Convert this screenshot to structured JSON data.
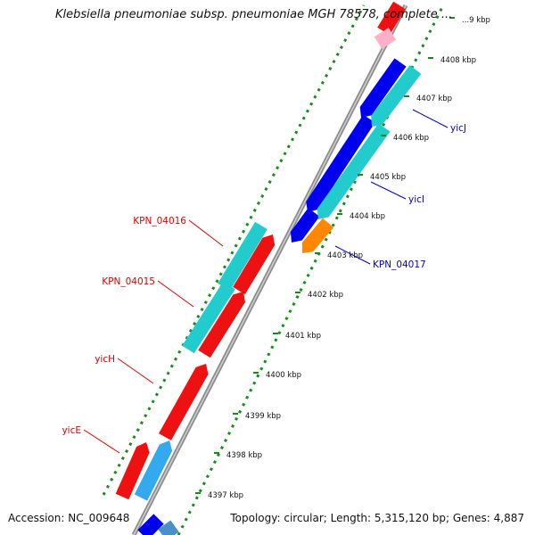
{
  "title": "Klebsiella pneumoniae subsp. pneumoniae MGH 78578, complete ...",
  "footer": {
    "accession": "Accession: NC_009648",
    "summary": "Topology: circular; Length: 5,315,120 bp; Genes: 4,887"
  },
  "colors": {
    "forward_label": "#dd0000",
    "reverse_label": "#0000cc",
    "backbone": "#8c8c8c",
    "tick_green": "#1a8a1a"
  },
  "ticks": [
    {
      "label": "4397 kbp"
    },
    {
      "label": "4398 kbp"
    },
    {
      "label": "4399 kbp"
    },
    {
      "label": "4400 kbp"
    },
    {
      "label": "4401 kbp"
    },
    {
      "label": "4402 kbp"
    },
    {
      "label": "4403 kbp"
    },
    {
      "label": "4404 kbp"
    },
    {
      "label": "4405 kbp"
    },
    {
      "label": "4406 kbp"
    },
    {
      "label": "4407 kbp"
    },
    {
      "label": "4408 kbp"
    },
    {
      "label": "...9 kbp"
    }
  ],
  "gene_labels": [
    {
      "name": "KPN_04016",
      "strand": "forward"
    },
    {
      "name": "KPN_04015",
      "strand": "forward"
    },
    {
      "name": "yicH",
      "strand": "forward"
    },
    {
      "name": "yicE",
      "strand": "forward"
    },
    {
      "name": "yicJ",
      "strand": "reverse"
    },
    {
      "name": "yicI",
      "strand": "reverse"
    },
    {
      "name": "KPN_04017",
      "strand": "reverse"
    }
  ],
  "features": [
    {
      "name": "yicE-cds",
      "color": "#ee1111"
    },
    {
      "name": "yicE-gene",
      "color": "#33aaee"
    },
    {
      "name": "yicH-cds",
      "color": "#ee1111"
    },
    {
      "name": "KPN_04015-cds",
      "color": "#ee1111"
    },
    {
      "name": "KPN_04015-gene",
      "color": "#22cccc"
    },
    {
      "name": "KPN_04016-cds",
      "color": "#ee1111"
    },
    {
      "name": "KPN_04016-gene",
      "color": "#22cccc"
    },
    {
      "name": "KPN_04017-cds",
      "color": "#0000ee"
    },
    {
      "name": "KPN_04017-gene",
      "color": "#ff8800"
    },
    {
      "name": "yicI-cds",
      "color": "#0000ee"
    },
    {
      "name": "yicI-gene",
      "color": "#22cccc"
    },
    {
      "name": "yicJ-cds",
      "color": "#0000ee"
    },
    {
      "name": "yicJ-gene",
      "color": "#22cccc"
    },
    {
      "name": "top-left-cds",
      "color": "#ee1111"
    },
    {
      "name": "top-left-gene",
      "color": "#ffb0c8"
    },
    {
      "name": "bottom-cds",
      "color": "#0000ee"
    },
    {
      "name": "bottom-gene",
      "color": "#4a90c8"
    }
  ]
}
